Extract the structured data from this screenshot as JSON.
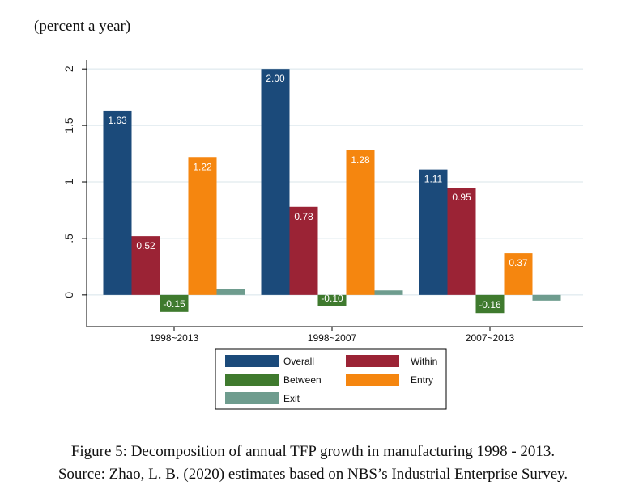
{
  "unit_label": "(percent a year)",
  "caption": {
    "line1": "Figure 5: Decomposition of annual TFP growth in manufacturing 1998 - 2013.",
    "line2": "Source: Zhao, L. B. (2020) estimates based on NBS’s Industrial Enterprise Survey."
  },
  "chart_data": {
    "type": "bar",
    "categories": [
      "1998~2013",
      "1998~2007",
      "2007~2013"
    ],
    "series": [
      {
        "name": "Overall",
        "color": "#1b4a7a",
        "values": [
          1.63,
          2.0,
          1.11
        ]
      },
      {
        "name": "Within",
        "color": "#9b2335",
        "values": [
          0.52,
          0.78,
          0.95
        ]
      },
      {
        "name": "Between",
        "color": "#3f7a2e",
        "values": [
          -0.15,
          -0.1,
          -0.16
        ]
      },
      {
        "name": "Entry",
        "color": "#f5860f",
        "values": [
          1.22,
          1.28,
          0.37
        ]
      },
      {
        "name": "Exit",
        "color": "#6e9c8e",
        "values": [
          0.05,
          0.04,
          -0.05
        ]
      }
    ],
    "data_labels": [
      [
        "1.63",
        "0.52",
        "-0.15",
        "1.22",
        ""
      ],
      [
        "2.00",
        "0.78",
        "-0.10",
        "1.28",
        ""
      ],
      [
        "1.11",
        "0.95",
        "-0.16",
        "0.37",
        ""
      ]
    ],
    "yticks": [
      0,
      0.5,
      1,
      1.5,
      2
    ],
    "ytick_labels": [
      "0",
      ".5",
      "1",
      "1.5",
      "2"
    ],
    "ylim": [
      -0.28,
      2.08
    ],
    "grid": true,
    "legend_position": "bottom",
    "xlabel": "",
    "ylabel": ""
  }
}
